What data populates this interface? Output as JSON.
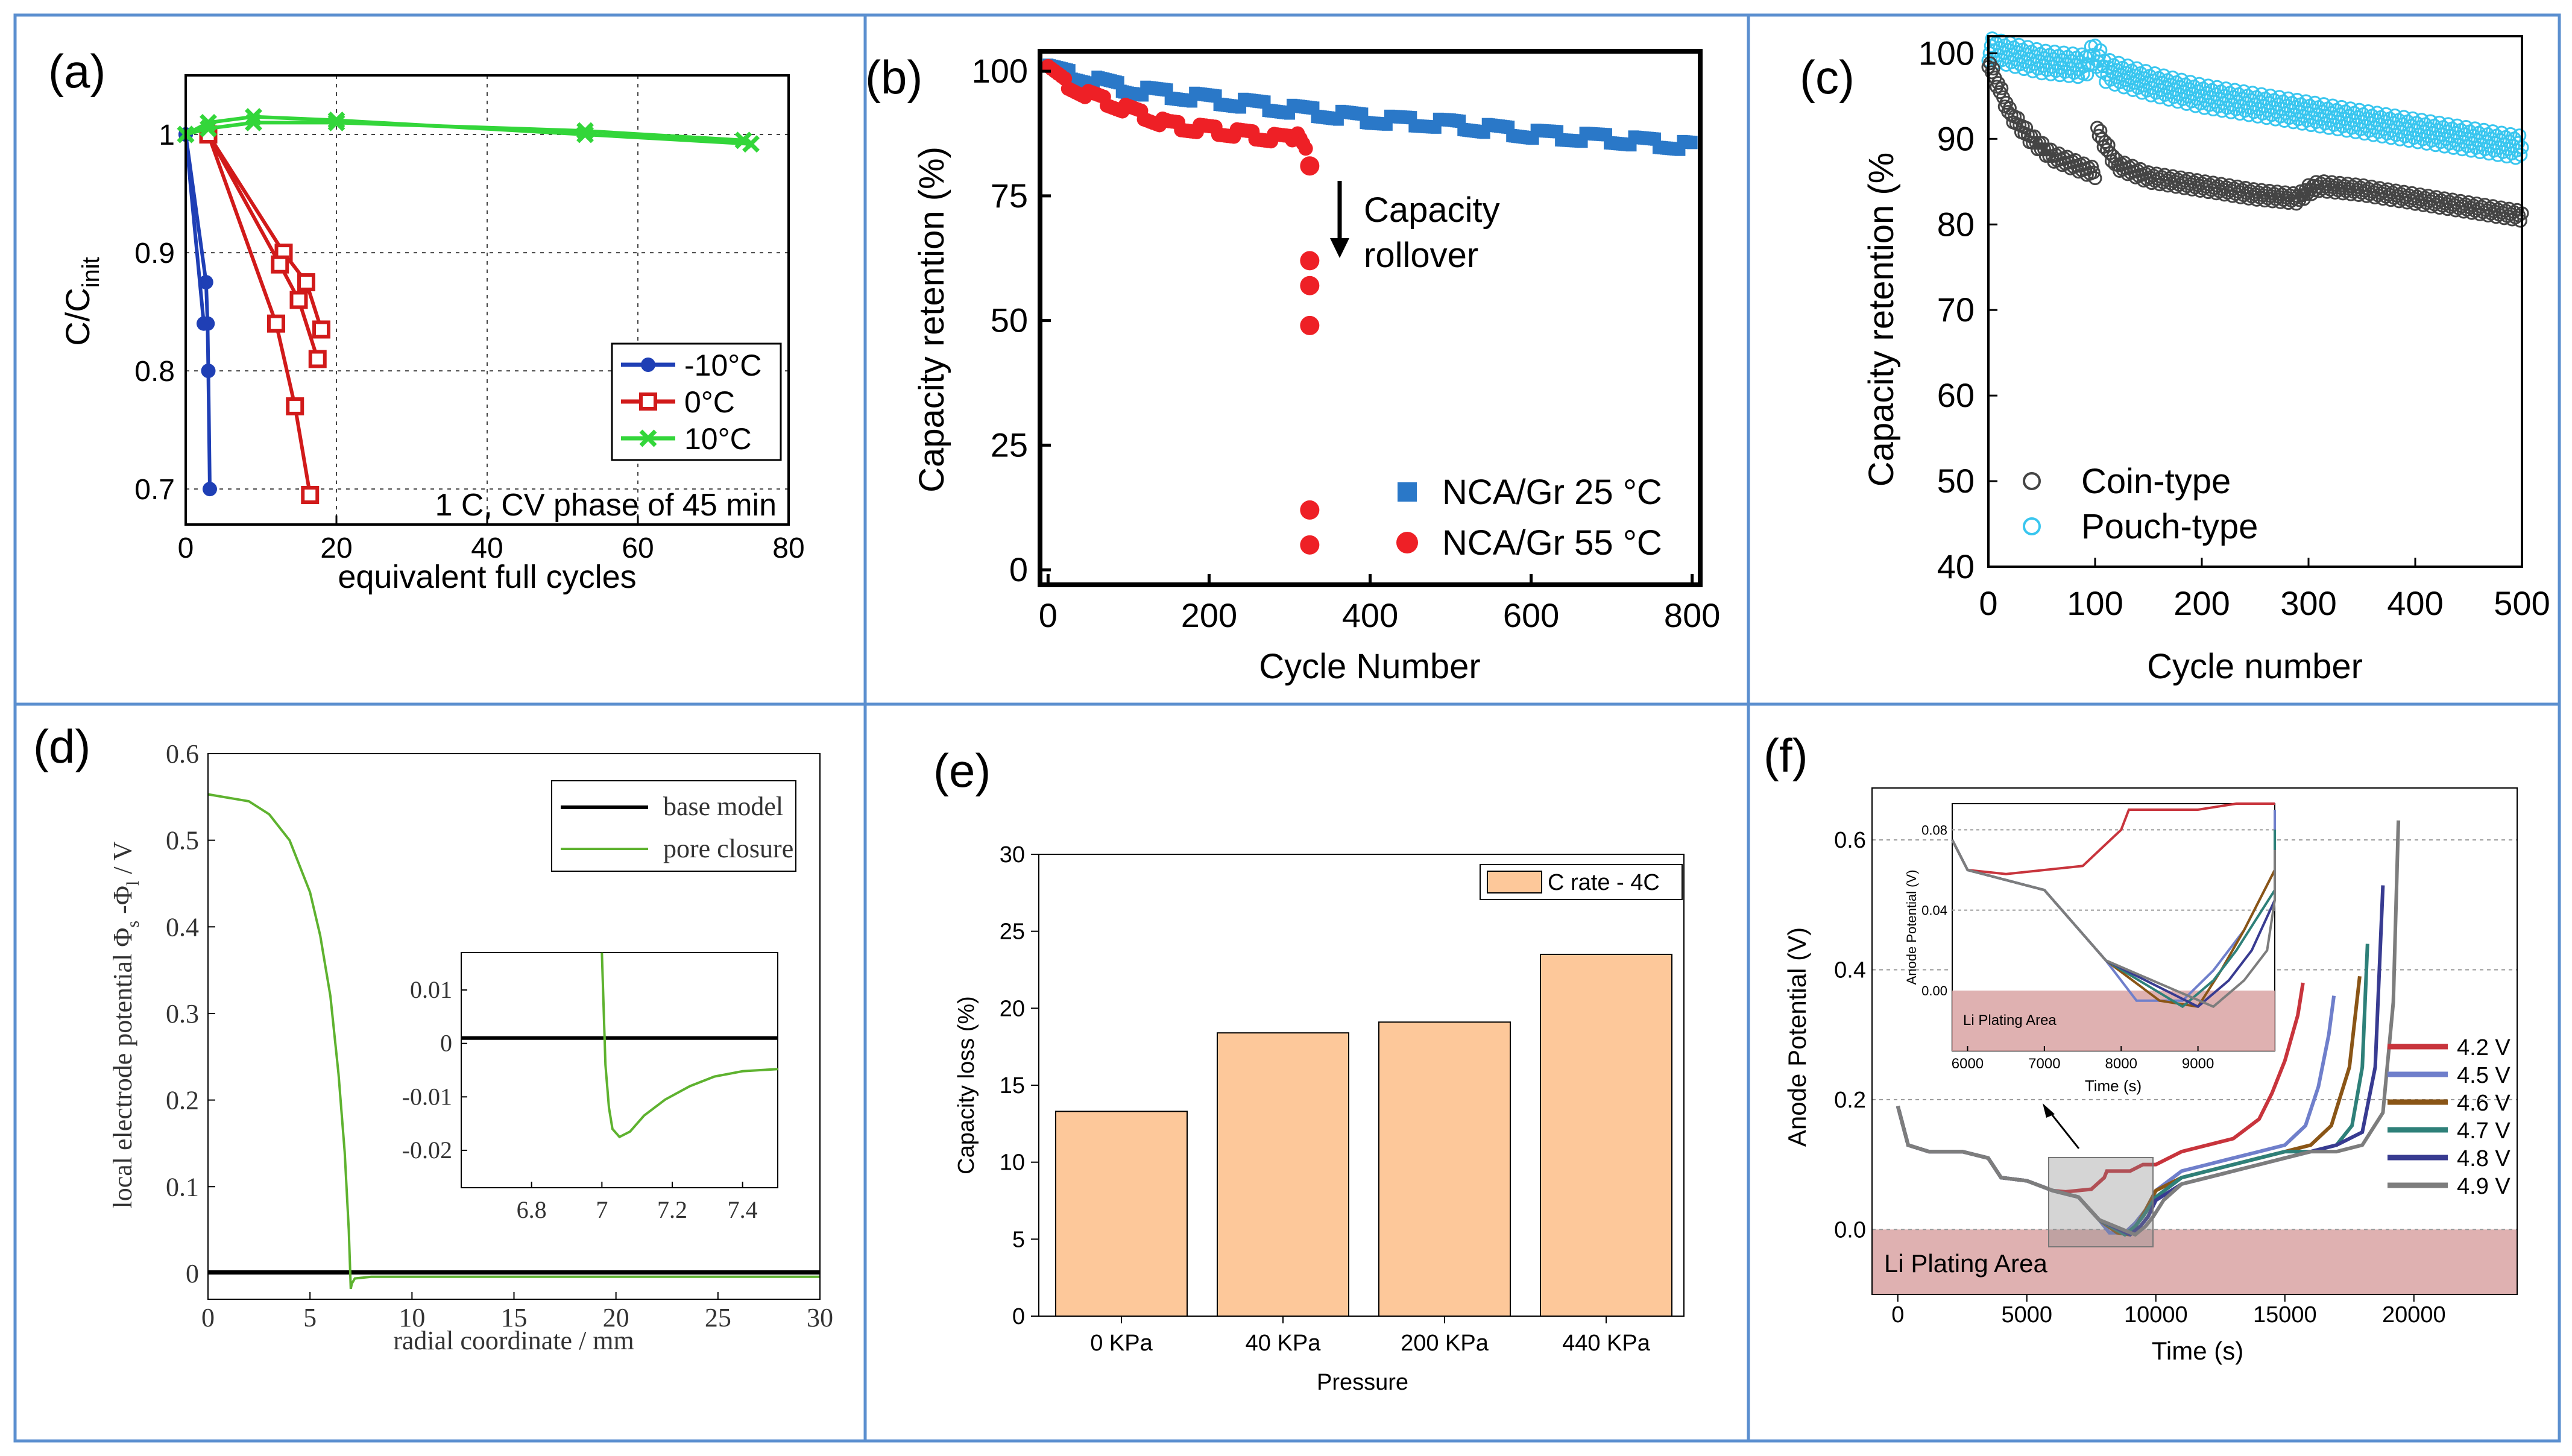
{
  "colors": {
    "border": "#5b8fcf",
    "blue_a": "#1f3fb5",
    "red_a": "#d11a1a",
    "green_a": "#33d63a",
    "blue_b": "#2a78c8",
    "red_b": "#ee2026",
    "dark_c": "#444444",
    "cyan_c": "#39c6ef",
    "green_d": "#5eb22f",
    "bar_e": "#fdc89a",
    "plating": "#d9a3a3",
    "f_colors": [
      "#c8343c",
      "#6f7fcb",
      "#8a5516",
      "#2e8079",
      "#383b91",
      "#7d7d7d"
    ]
  },
  "panels": {
    "a": {
      "label": "(a)"
    },
    "b": {
      "label": "(b)"
    },
    "c": {
      "label": "(c)"
    },
    "d": {
      "label": "(d)"
    },
    "e": {
      "label": "(e)"
    },
    "f": {
      "label": "(f)"
    }
  },
  "chart_data": [
    {
      "panel": "a",
      "type": "line",
      "title": "",
      "xlabel": "equivalent full cycles",
      "ylabel": "C/C",
      "ylabel_sub": "init",
      "xlim": [
        0,
        80
      ],
      "ylim": [
        0.67,
        1.05
      ],
      "xticks": [
        0,
        20,
        40,
        60,
        80
      ],
      "yticks": [
        0.7,
        0.8,
        0.9,
        1
      ],
      "ytick_labels": [
        "0.7",
        "0.8",
        "0.9",
        "1"
      ],
      "grid": true,
      "legend": "middle-right",
      "annotation": "1 C, CV phase of 45 min",
      "series": [
        {
          "name": "-10°C",
          "color": "#1f3fb5",
          "marker": "circle",
          "lines": [
            [
              [
                0,
                1.0
              ],
              [
                2.7,
                0.875
              ],
              [
                2.9,
                0.84
              ],
              [
                3.0,
                0.8
              ],
              [
                3.2,
                0.7
              ]
            ],
            [
              [
                0,
                1.0
              ],
              [
                2.4,
                0.84
              ]
            ]
          ]
        },
        {
          "name": "0°C",
          "color": "#d11a1a",
          "marker": "square",
          "lines": [
            [
              [
                3,
                1.0
              ],
              [
                13,
                0.9
              ],
              [
                16,
                0.875
              ],
              [
                18,
                0.835
              ]
            ],
            [
              [
                3,
                1.0
              ],
              [
                12.5,
                0.89
              ],
              [
                15,
                0.86
              ],
              [
                17.5,
                0.81
              ]
            ],
            [
              [
                3,
                1.0
              ],
              [
                12,
                0.84
              ],
              [
                14.5,
                0.77
              ],
              [
                16.5,
                0.695
              ]
            ]
          ]
        },
        {
          "name": "10°C",
          "color": "#33d63a",
          "marker": "x",
          "lines": [
            [
              [
                0,
                1.0
              ],
              [
                3,
                1.01
              ],
              [
                9,
                1.015
              ],
              [
                20,
                1.012
              ],
              [
                53,
                1.0
              ],
              [
                75,
                0.992
              ]
            ],
            [
              [
                0,
                1.0
              ],
              [
                3,
                1.005
              ],
              [
                9,
                1.01
              ],
              [
                20,
                1.01
              ],
              [
                53,
                1.003
              ],
              [
                74,
                0.995
              ]
            ]
          ]
        }
      ]
    },
    {
      "panel": "b",
      "type": "scatter",
      "title": "",
      "xlabel": "Cycle Number",
      "ylabel": "Capacity retention (%)",
      "xlim": [
        -10,
        810
      ],
      "ylim": [
        -3,
        104
      ],
      "xticks": [
        0,
        200,
        400,
        600,
        800
      ],
      "yticks": [
        0,
        25,
        50,
        75,
        100
      ],
      "grid": false,
      "legend": "bottom-right",
      "annotation": [
        "Capacity",
        "rollover"
      ],
      "series": [
        {
          "name": "NCA/Gr 25 °C",
          "color": "#2a78c8",
          "marker": "square",
          "x": [
            0,
            100,
            200,
            300,
            400,
            500,
            600,
            700,
            800
          ],
          "y": [
            100,
            96,
            94,
            92,
            90,
            89,
            87,
            86,
            84.5
          ]
        },
        {
          "name": "NCA/Gr 55 °C",
          "color": "#ee2026",
          "marker": "circle",
          "x": [
            0,
            25,
            50,
            100,
            150,
            200,
            250,
            300,
            310,
            320,
            325,
            325,
            325,
            325,
            325,
            325
          ],
          "y": [
            100,
            97,
            95,
            92,
            89,
            88,
            87,
            86,
            88,
            85,
            81,
            62,
            57,
            49,
            12,
            5
          ]
        }
      ]
    },
    {
      "panel": "c",
      "type": "scatter",
      "title": "",
      "xlabel": "Cycle number",
      "ylabel": "Capacity retention (%",
      "xlim": [
        0,
        500
      ],
      "ylim": [
        40,
        102
      ],
      "xticks": [
        0,
        100,
        200,
        300,
        400,
        500
      ],
      "yticks": [
        40,
        50,
        60,
        70,
        80,
        90,
        100
      ],
      "grid": false,
      "legend": "bottom-left",
      "series": [
        {
          "name": "Coin-type",
          "color": "#444444",
          "marker": "open-circle",
          "x": [
            0,
            20,
            40,
            60,
            80,
            100,
            102,
            120,
            150,
            200,
            250,
            290,
            300,
            310,
            350,
            400,
            450,
            500
          ],
          "y": [
            99,
            93,
            90,
            88,
            87,
            86,
            91,
            87,
            85.5,
            84.5,
            83.5,
            83,
            84,
            84.5,
            84,
            83,
            82,
            81
          ]
        },
        {
          "name": "Pouch-type",
          "color": "#39c6ef",
          "marker": "open-circle",
          "x": [
            0,
            50,
            90,
            100,
            110,
            150,
            200,
            250,
            300,
            350,
            400,
            450,
            500
          ],
          "y": [
            100.5,
            99,
            98.5,
            100,
            98,
            96.5,
            95,
            94,
            93,
            92,
            91,
            90,
            89
          ]
        }
      ]
    },
    {
      "panel": "d",
      "type": "line",
      "title": "",
      "xlabel": "radial coordinate / mm",
      "ylabel": "local electrode potential Φ",
      "ylabel_rest": " -Φ",
      "ylabel_end": " / V",
      "ylabel_sub1": "s",
      "ylabel_sub2": "l",
      "xlim": [
        0,
        30
      ],
      "ylim": [
        -0.03,
        0.6
      ],
      "xticks": [
        0,
        5,
        10,
        15,
        20,
        25,
        30
      ],
      "yticks": [
        0,
        0.1,
        0.2,
        0.3,
        0.4,
        0.5,
        0.6
      ],
      "grid": false,
      "legend": "top-right",
      "series": [
        {
          "name": "base model",
          "color": "#000000",
          "x": [
            0,
            30
          ],
          "y": [
            0.001,
            0.001
          ]
        },
        {
          "name": "pore closure",
          "color": "#5eb22f",
          "x": [
            0,
            2,
            3,
            4,
            5,
            5.5,
            6,
            6.4,
            6.7,
            6.9,
            7.0,
            7.05,
            7.2,
            8,
            10,
            20,
            30
          ],
          "y": [
            0.553,
            0.545,
            0.53,
            0.5,
            0.44,
            0.39,
            0.32,
            0.23,
            0.14,
            0.05,
            -0.018,
            -0.012,
            -0.006,
            -0.004,
            -0.004,
            -0.004,
            -0.004
          ]
        }
      ],
      "inset": {
        "xlim": [
          6.6,
          7.5
        ],
        "ylim": [
          -0.027,
          0.017
        ],
        "xticks": [
          6.8,
          7,
          7.2,
          7.4
        ],
        "yticks": [
          0.01,
          0,
          -0.01,
          -0.02
        ],
        "ytick_labels": [
          "0.01",
          "0",
          "-0.01",
          "-0.02"
        ],
        "series": [
          {
            "name": "base model",
            "x": [
              6.6,
              7.5
            ],
            "y": [
              0.001,
              0.001
            ]
          },
          {
            "name": "pore closure",
            "x": [
              7.0,
              7.01,
              7.02,
              7.03,
              7.05,
              7.08,
              7.12,
              7.18,
              7.25,
              7.32,
              7.4,
              7.5
            ],
            "y": [
              0.017,
              -0.004,
              -0.012,
              -0.016,
              -0.0175,
              -0.0165,
              -0.0135,
              -0.0105,
              -0.008,
              -0.0062,
              -0.0052,
              -0.0048
            ]
          }
        ]
      }
    },
    {
      "panel": "e",
      "type": "bar",
      "title": "",
      "xlabel": "Pressure",
      "ylabel": "Capacity loss (%)",
      "categories": [
        "0 KPa",
        "40 KPa",
        "200 KPa",
        "440 KPa"
      ],
      "values": [
        13.3,
        18.4,
        19.1,
        23.5
      ],
      "ylim": [
        0,
        30
      ],
      "yticks": [
        0,
        5,
        10,
        15,
        20,
        25,
        30
      ],
      "grid": false,
      "legend": "top-right",
      "series": [
        {
          "name": "C rate - 4C",
          "values": [
            13.3,
            18.4,
            19.1,
            23.5
          ]
        }
      ]
    },
    {
      "panel": "f",
      "type": "line",
      "title": "",
      "xlabel": "Time (s)",
      "ylabel": "Anode Potential (V)",
      "xlim": [
        -1000,
        24000
      ],
      "ylim": [
        -0.1,
        0.68
      ],
      "xticks": [
        0,
        5000,
        10000,
        15000,
        20000
      ],
      "yticks": [
        0.0,
        0.2,
        0.4,
        0.6
      ],
      "ytick_labels": [
        "0.0",
        "0.2",
        "0.4",
        "0.6"
      ],
      "grid": true,
      "legend": "middle-right",
      "region_label": "Li Plating Area",
      "series": [
        {
          "name": "4.2 V",
          "x": [
            0,
            400,
            1200,
            2500,
            3500,
            4000,
            5000,
            6000,
            6500,
            7500,
            8000,
            8100,
            9000,
            9500,
            10000,
            10500,
            11000,
            12000,
            13000,
            14000,
            14500,
            15000,
            15500,
            15700
          ],
          "y": [
            0.19,
            0.13,
            0.12,
            0.12,
            0.11,
            0.08,
            0.075,
            0.06,
            0.058,
            0.062,
            0.08,
            0.09,
            0.09,
            0.1,
            0.1,
            0.11,
            0.12,
            0.13,
            0.14,
            0.17,
            0.21,
            0.26,
            0.33,
            0.38
          ]
        },
        {
          "name": "4.5 V",
          "x": [
            0,
            400,
            1200,
            2500,
            3500,
            4000,
            5000,
            6000,
            7000,
            7800,
            8200,
            8800,
            9200,
            9600,
            10000,
            11000,
            12000,
            13000,
            14000,
            15000,
            15800,
            16300,
            16700,
            16900
          ],
          "y": [
            0.19,
            0.13,
            0.12,
            0.12,
            0.11,
            0.08,
            0.075,
            0.06,
            0.05,
            0.015,
            -0.005,
            -0.005,
            0.01,
            0.03,
            0.06,
            0.09,
            0.1,
            0.11,
            0.12,
            0.13,
            0.16,
            0.22,
            0.3,
            0.36
          ]
        },
        {
          "name": "4.6 V",
          "x": [
            0,
            400,
            1200,
            2500,
            3500,
            4000,
            5000,
            6000,
            7000,
            7800,
            8500,
            9000,
            9300,
            9600,
            10000,
            11000,
            12000,
            13000,
            14000,
            15000,
            16000,
            16800,
            17500,
            17900
          ],
          "y": [
            0.19,
            0.13,
            0.12,
            0.12,
            0.11,
            0.08,
            0.075,
            0.06,
            0.05,
            0.015,
            -0.005,
            -0.008,
            0.01,
            0.03,
            0.06,
            0.08,
            0.09,
            0.1,
            0.11,
            0.12,
            0.13,
            0.16,
            0.25,
            0.39
          ]
        },
        {
          "name": "4.7 V",
          "x": [
            0,
            400,
            1200,
            2500,
            3500,
            4000,
            5000,
            6000,
            7000,
            7800,
            8800,
            9200,
            9500,
            10000,
            11000,
            12000,
            13000,
            14000,
            15000,
            16000,
            17000,
            17600,
            18000,
            18200
          ],
          "y": [
            0.19,
            0.13,
            0.12,
            0.12,
            0.11,
            0.08,
            0.075,
            0.06,
            0.05,
            0.015,
            -0.008,
            0.005,
            0.02,
            0.05,
            0.08,
            0.09,
            0.1,
            0.11,
            0.12,
            0.12,
            0.13,
            0.16,
            0.25,
            0.44
          ]
        },
        {
          "name": "4.8 V",
          "x": [
            0,
            400,
            1200,
            2500,
            3500,
            4000,
            5000,
            6000,
            7000,
            7800,
            9000,
            9400,
            9700,
            10000,
            11000,
            12000,
            13000,
            14000,
            15000,
            16000,
            17000,
            18000,
            18500,
            18800
          ],
          "y": [
            0.19,
            0.13,
            0.12,
            0.12,
            0.11,
            0.08,
            0.075,
            0.06,
            0.05,
            0.015,
            -0.008,
            0.005,
            0.02,
            0.045,
            0.07,
            0.08,
            0.09,
            0.1,
            0.11,
            0.12,
            0.13,
            0.15,
            0.25,
            0.53
          ]
        },
        {
          "name": "4.9 V",
          "x": [
            0,
            400,
            1200,
            2500,
            3500,
            4000,
            5000,
            6000,
            7000,
            7800,
            9200,
            9600,
            9900,
            10300,
            11000,
            12000,
            13000,
            14000,
            15000,
            16000,
            17000,
            18000,
            18800,
            19200,
            19400
          ],
          "y": [
            0.19,
            0.13,
            0.12,
            0.12,
            0.11,
            0.08,
            0.075,
            0.06,
            0.05,
            0.015,
            -0.008,
            0.005,
            0.02,
            0.045,
            0.07,
            0.08,
            0.09,
            0.1,
            0.11,
            0.12,
            0.12,
            0.13,
            0.18,
            0.35,
            0.63
          ]
        }
      ],
      "inset": {
        "xlim": [
          5800,
          10000
        ],
        "ylim": [
          -0.03,
          0.093
        ],
        "xticks": [
          6000,
          7000,
          8000,
          9000
        ],
        "yticks": [
          0.0,
          0.04,
          0.08
        ],
        "ytick_labels": [
          "0.00",
          "0.04",
          "0.08"
        ],
        "xlabel": "Time (s)",
        "ylabel": "Anode Potential (V)",
        "region_label": "Li Plating Area"
      }
    }
  ]
}
